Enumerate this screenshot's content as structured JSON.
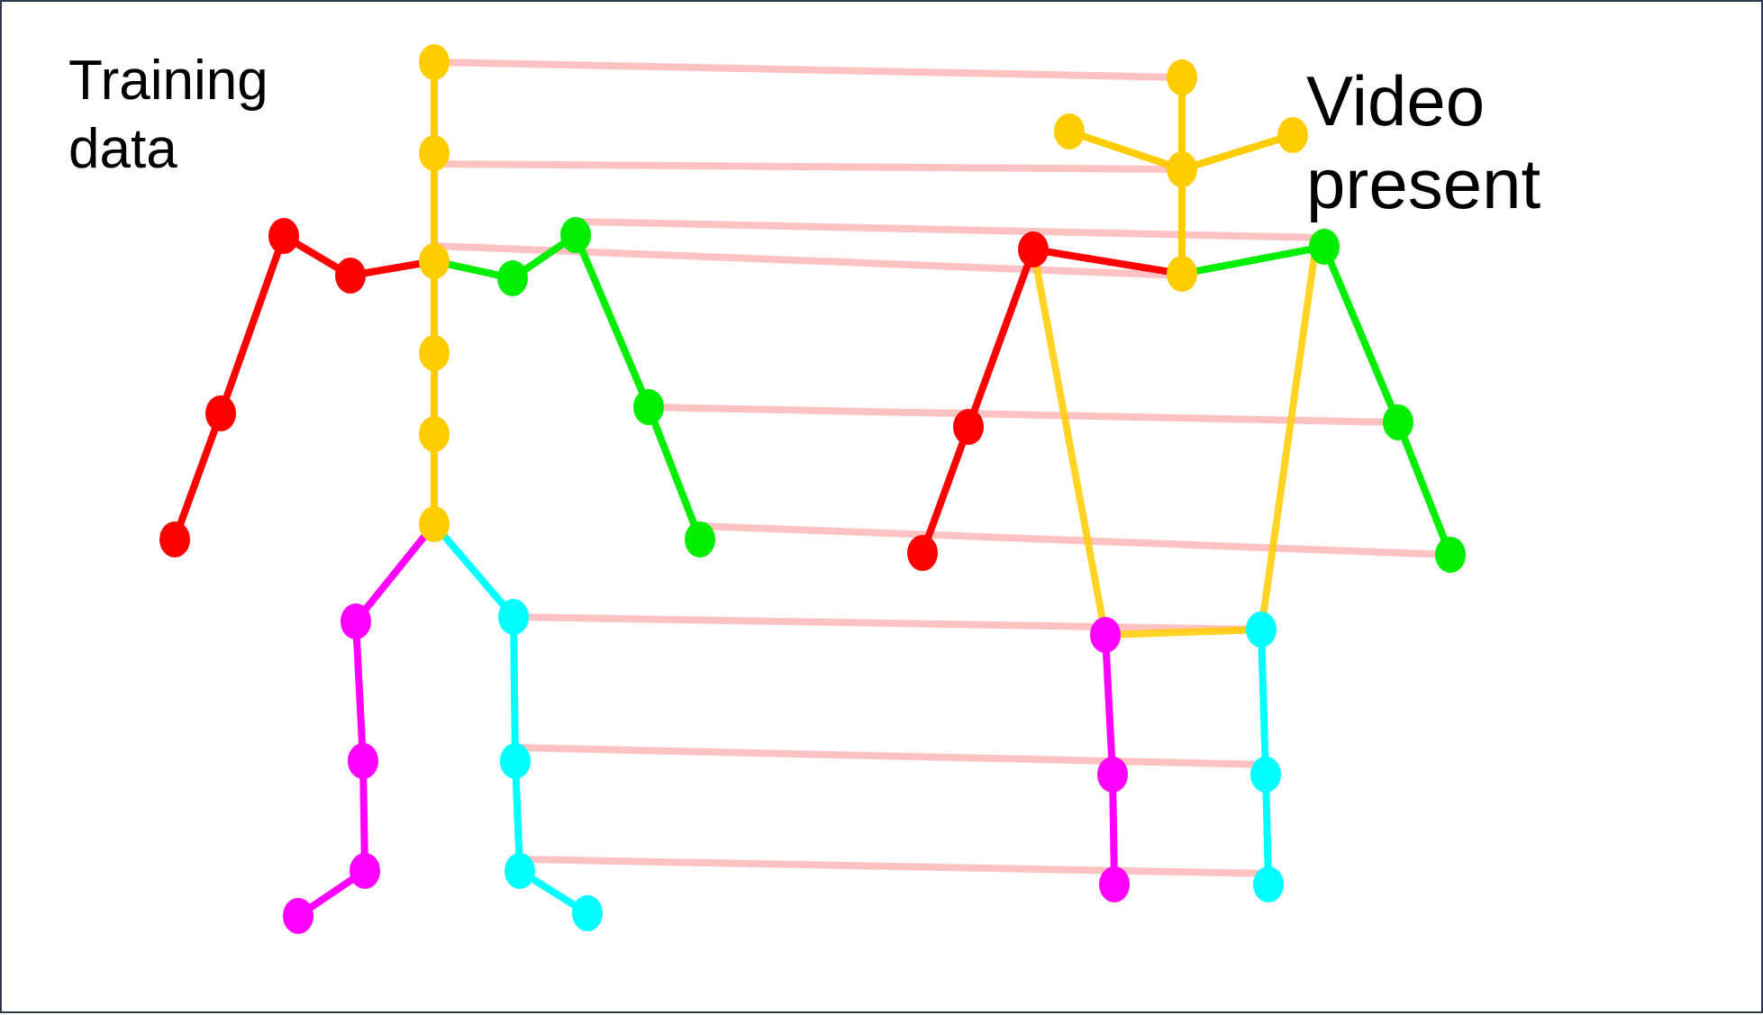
{
  "labels": {
    "training": "Training\ndata",
    "video": "Video\npresent"
  },
  "colors": {
    "head_torso": "#ffcc00",
    "right_arm": "#ff0000",
    "left_arm": "#00ee00",
    "right_leg": "#ff00ff",
    "left_leg": "#00ffff",
    "correspondence": "#ff9a9a"
  }
}
